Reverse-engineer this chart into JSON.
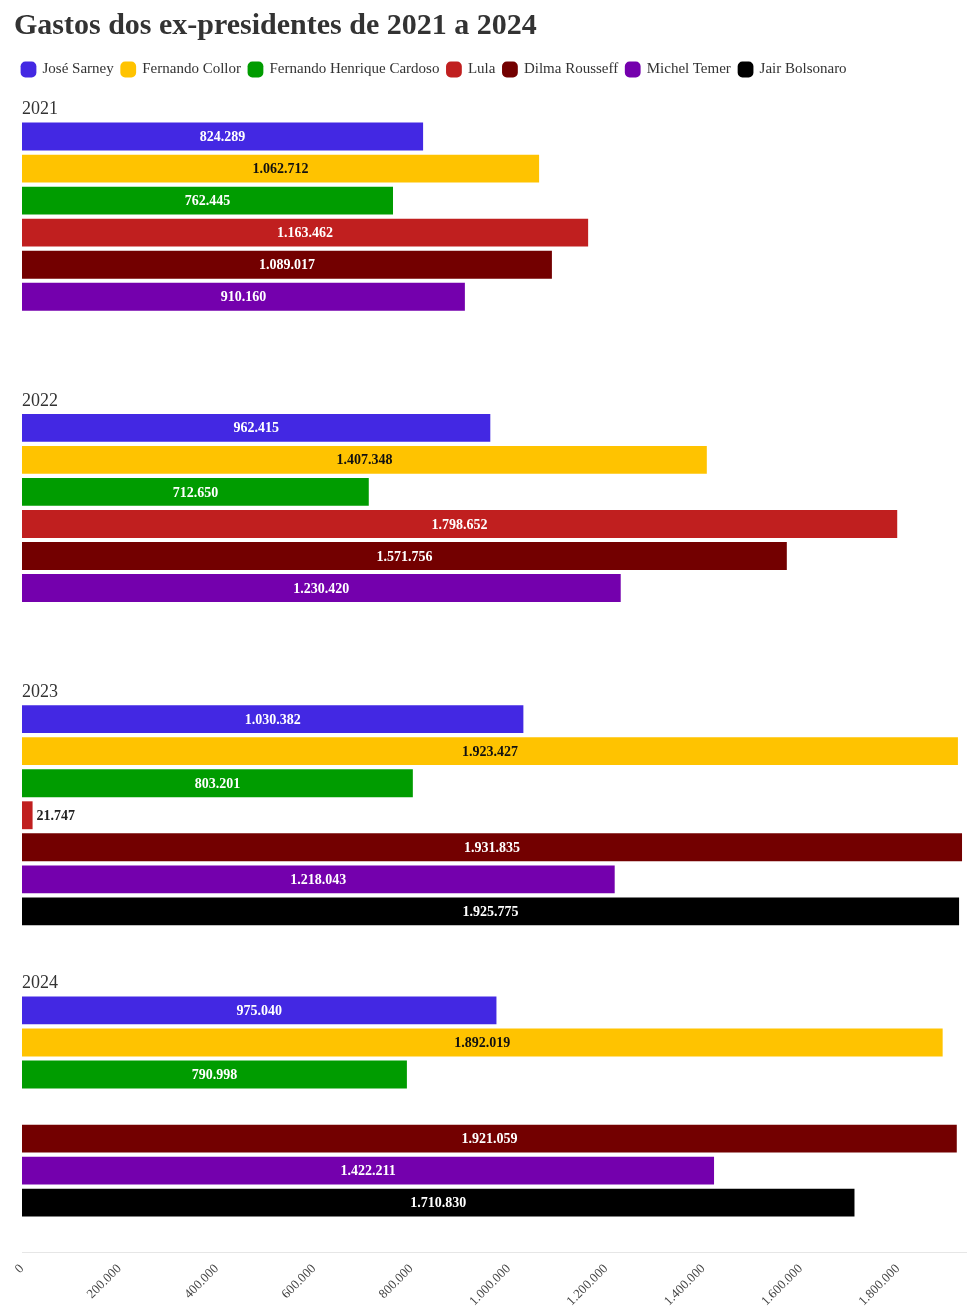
{
  "chart_data": {
    "type": "bar",
    "orientation": "horizontal",
    "title": "Gastos dos ex-presidentes de 2021 a 2024",
    "categories": [
      "2021",
      "2022",
      "2023",
      "2024"
    ],
    "series": [
      {
        "name": "José Sarney",
        "color": "#4328e3",
        "values": [
          824289,
          962415,
          1030382,
          975040
        ],
        "value_labels": [
          "824.289",
          "962.415",
          "1.030.382",
          "975.040"
        ]
      },
      {
        "name": "Fernando Collor",
        "color": "#ffc300",
        "values": [
          1062712,
          1407348,
          1923427,
          1892019
        ],
        "value_labels": [
          "1.062.712",
          "1.407.348",
          "1.923.427",
          "1.892.019"
        ]
      },
      {
        "name": "Fernando Henrique Cardoso",
        "color": "#009c00",
        "values": [
          762445,
          712650,
          803201,
          790998
        ],
        "value_labels": [
          "762.445",
          "712.650",
          "803.201",
          "790.998"
        ]
      },
      {
        "name": "Lula",
        "color": "#c01f1f",
        "values": [
          1163462,
          1798652,
          21747,
          null
        ],
        "value_labels": [
          "1.163.462",
          "1.798.652",
          "21.747",
          null
        ]
      },
      {
        "name": "Dilma Rousseff",
        "color": "#730000",
        "values": [
          1089017,
          1571756,
          1931835,
          1921059
        ],
        "value_labels": [
          "1.089.017",
          "1.571.756",
          "1.931.835",
          "1.921.059"
        ]
      },
      {
        "name": "Michel Temer",
        "color": "#7400ad",
        "values": [
          910160,
          1230420,
          1218043,
          1422211
        ],
        "value_labels": [
          "910.160",
          "1.230.420",
          "1.218.043",
          "1.422.211"
        ]
      },
      {
        "name": "Jair Bolsonaro",
        "color": "#000000",
        "values": [
          null,
          null,
          1925775,
          1710830
        ],
        "value_labels": [
          null,
          null,
          "1.925.775",
          "1.710.830"
        ]
      }
    ],
    "xlim": [
      0,
      1940000
    ],
    "xticks": [
      0,
      {
        "value": 200000,
        "label": "200.000"
      },
      {
        "value": 400000,
        "label": "400.000"
      },
      {
        "value": 600000,
        "label": "600.000"
      },
      {
        "value": 800000,
        "label": "800.000"
      },
      {
        "value": 1000000,
        "label": "1.000.000"
      },
      {
        "value": 1200000,
        "label": "1.200.000"
      },
      {
        "value": 1400000,
        "label": "1.400.000"
      },
      {
        "value": 1600000,
        "label": "1.600.000"
      },
      {
        "value": 1800000,
        "label": "1.800.000"
      }
    ],
    "legend": "top"
  }
}
